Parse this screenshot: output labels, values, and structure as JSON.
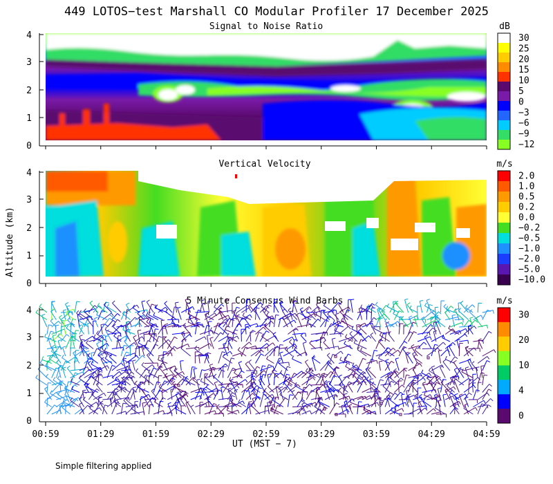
{
  "title": "449 LOTOS−test Marshall CO Modular Profiler 17 December 2025",
  "ylabel": "Altitude (km)",
  "xlabel": "UT  (MST − 7)",
  "footer": "Simple filtering applied",
  "chart_data": [
    {
      "type": "heatmap",
      "title": "Signal to Noise Ratio",
      "unit": "dB",
      "x_ticks": [
        "00:59",
        "01:29",
        "01:59",
        "02:29",
        "02:59",
        "03:29",
        "03:59",
        "04:29",
        "04:59"
      ],
      "y_ticks": [
        "0",
        "1",
        "2",
        "3",
        "4"
      ],
      "ylim": [
        0,
        4
      ],
      "colorbar": {
        "labels": [
          "30",
          "25",
          "20",
          "15",
          "10",
          "5",
          "0",
          "−3",
          "−6",
          "−9",
          "−12"
        ],
        "colors": [
          "#ffffff",
          "#ffff00",
          "#ffcc00",
          "#ff8c00",
          "#ff3300",
          "#5a0a6e",
          "#7a1aa8",
          "#0000ff",
          "#2266ff",
          "#00ccff",
          "#33dd66",
          "#88ff22"
        ]
      }
    },
    {
      "type": "heatmap",
      "title": "Vertical Velocity",
      "unit": "m/s",
      "x_ticks": [
        "00:59",
        "01:29",
        "01:59",
        "02:29",
        "02:59",
        "03:29",
        "03:59",
        "04:29",
        "04:59"
      ],
      "y_ticks": [
        "0",
        "1",
        "2",
        "3",
        "4"
      ],
      "ylim": [
        0,
        4
      ],
      "colorbar": {
        "labels": [
          "2.0",
          "1.0",
          "0.5",
          "0.2",
          "0.0",
          "−0.2",
          "−0.5",
          "−1.0",
          "−2.0",
          "−5.0",
          "−10.0"
        ],
        "colors": [
          "#ff0000",
          "#ff5a00",
          "#ff9900",
          "#ffcc00",
          "#ffff33",
          "#44dd22",
          "#00dddd",
          "#1e90ff",
          "#1a3dff",
          "#5a16b0",
          "#3a0050"
        ]
      }
    },
    {
      "type": "scatter",
      "title": "5 Minute Consensus Wind Barbs",
      "unit": "m/s",
      "x_ticks": [
        "00:59",
        "01:29",
        "01:59",
        "02:29",
        "02:59",
        "03:29",
        "03:59",
        "04:29",
        "04:59"
      ],
      "y_ticks": [
        "0",
        "1",
        "2",
        "3",
        "4"
      ],
      "ylim": [
        0,
        4
      ],
      "colorbar": {
        "labels": [
          "30",
          "20",
          "10",
          "4",
          "0"
        ],
        "colors": [
          "#ff0000",
          "#ff8c00",
          "#ffcc00",
          "#88ff22",
          "#00cc66",
          "#00aaff",
          "#0000ff",
          "#5a0a6e"
        ]
      }
    }
  ]
}
